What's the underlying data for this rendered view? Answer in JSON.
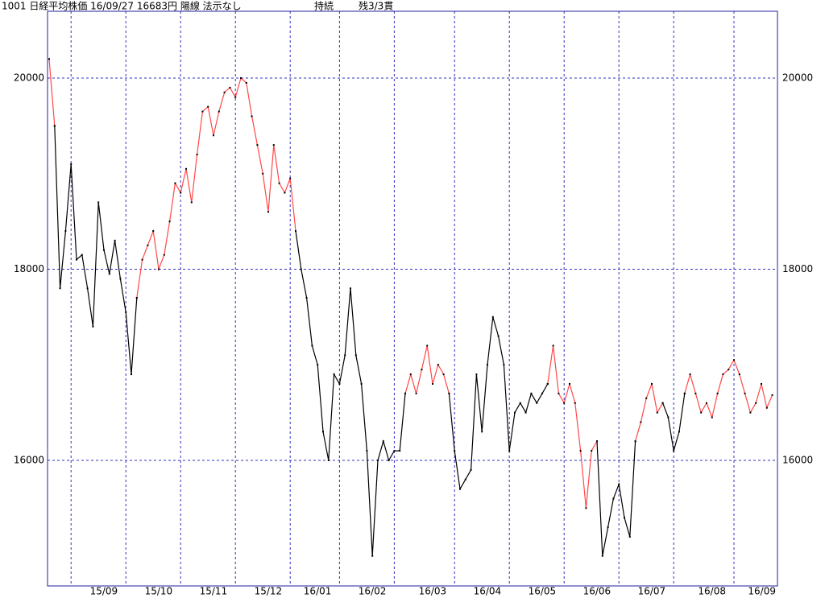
{
  "chart_data": {
    "type": "line",
    "title": "1001 日経平均株価 16/09/27 16683円 陽線 法示なし",
    "annotations": [
      "持続",
      "残3/3貫"
    ],
    "categories": [
      null,
      null,
      null,
      null,
      "15/09",
      null,
      null,
      null,
      null,
      null,
      null,
      null,
      null,
      null,
      "15/10",
      null,
      null,
      null,
      null,
      null,
      null,
      null,
      null,
      null,
      "15/11",
      null,
      null,
      null,
      null,
      null,
      null,
      null,
      null,
      null,
      "15/12",
      null,
      null,
      null,
      null,
      null,
      null,
      null,
      null,
      null,
      "16/01",
      null,
      null,
      null,
      null,
      null,
      null,
      null,
      null,
      "16/02",
      null,
      null,
      null,
      null,
      null,
      null,
      null,
      null,
      null,
      "16/03",
      null,
      null,
      null,
      null,
      null,
      null,
      null,
      null,
      null,
      null,
      "16/04",
      null,
      null,
      null,
      null,
      null,
      null,
      null,
      null,
      null,
      "16/05",
      null,
      null,
      null,
      null,
      null,
      null,
      null,
      null,
      null,
      "16/06",
      null,
      null,
      null,
      null,
      null,
      null,
      null,
      null,
      null,
      "16/07",
      null,
      null,
      null,
      null,
      null,
      null,
      null,
      null,
      null,
      "16/08",
      null,
      null,
      null,
      null,
      null,
      null,
      null,
      null,
      null,
      null,
      "16/09",
      null,
      null,
      null,
      null,
      null,
      null,
      null
    ],
    "series": [
      {
        "color": "#000000",
        "values": [
          null,
          19500,
          17800,
          18400,
          19100,
          18100,
          18150,
          17800,
          17400,
          18700,
          18200,
          17950,
          18300,
          17900,
          17550,
          16900,
          17700,
          null,
          null,
          null,
          null,
          null,
          null,
          null,
          null,
          null,
          null,
          null,
          null,
          null,
          null,
          null,
          null,
          null,
          null,
          null,
          null,
          null,
          null,
          null,
          null,
          null,
          null,
          null,
          null,
          18400,
          18000,
          17700,
          17200,
          17000,
          16300,
          16000,
          16900,
          16800,
          17100,
          17800,
          17100,
          16800,
          16100,
          15000,
          16000,
          16200,
          16000,
          16100,
          16100,
          16700,
          null,
          null,
          null,
          null,
          null,
          null,
          null,
          16700,
          16100,
          15700,
          15800,
          15900,
          16900,
          16300,
          17000,
          17500,
          17300,
          17000,
          16100,
          16500,
          16600,
          16500,
          16700,
          16600,
          16700,
          16800,
          null,
          null,
          null,
          null,
          null,
          null,
          null,
          null,
          16200,
          15000,
          15300,
          15600,
          15750,
          15400,
          15200,
          16200,
          null,
          null,
          null,
          null,
          16600,
          16450,
          16100,
          16300,
          16700,
          null,
          null,
          null,
          null,
          null,
          null,
          null,
          null,
          null,
          null,
          null,
          null,
          null,
          null,
          null,
          null
        ]
      },
      {
        "color": "#ff4848",
        "values": [
          20200,
          19500,
          null,
          null,
          null,
          null,
          null,
          null,
          null,
          null,
          null,
          null,
          null,
          null,
          null,
          null,
          17700,
          18100,
          18250,
          18400,
          18000,
          18150,
          18500,
          18900,
          18800,
          19050,
          18700,
          19200,
          19650,
          19700,
          19400,
          19650,
          19850,
          19900,
          19800,
          20000,
          19950,
          19600,
          19300,
          19000,
          18600,
          19300,
          18900,
          18800,
          18950,
          18400,
          null,
          null,
          null,
          null,
          null,
          null,
          null,
          null,
          null,
          null,
          null,
          null,
          null,
          null,
          null,
          null,
          null,
          null,
          null,
          16700,
          16900,
          16700,
          16950,
          17200,
          16800,
          17000,
          16900,
          16700,
          null,
          null,
          null,
          null,
          null,
          null,
          null,
          null,
          null,
          null,
          null,
          null,
          null,
          null,
          null,
          null,
          null,
          16800,
          17200,
          16700,
          16600,
          16800,
          16600,
          16100,
          15500,
          16100,
          16200,
          null,
          null,
          null,
          null,
          null,
          null,
          16200,
          16400,
          16650,
          16800,
          16500,
          16600,
          null,
          null,
          null,
          16700,
          16900,
          16700,
          16500,
          16600,
          16450,
          16700,
          16900,
          16950,
          17050,
          16900,
          16700,
          16500,
          16600,
          16800,
          16550,
          16683
        ]
      }
    ],
    "ylim": [
      14686,
      20699
    ],
    "yticks": [
      16000,
      18000,
      20000
    ],
    "grid": true,
    "grid_color": "#3030c0",
    "frame_color": "#20209a",
    "marker_color": "#000000"
  }
}
